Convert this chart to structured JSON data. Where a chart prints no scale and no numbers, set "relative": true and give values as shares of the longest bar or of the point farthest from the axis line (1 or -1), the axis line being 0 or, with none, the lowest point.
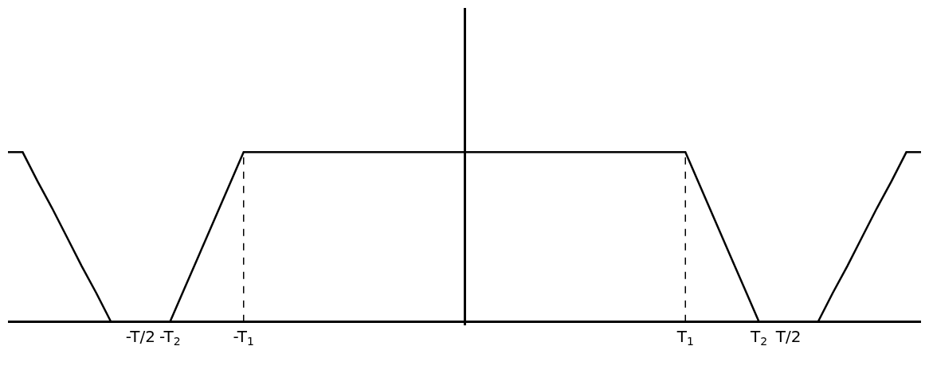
{
  "chart_data": {
    "type": "line",
    "relative": true,
    "categories": [
      null,
      null,
      null,
      null,
      null,
      null,
      null,
      null,
      null,
      "-T/2",
      null,
      "-T$_{2}$",
      null,
      null,
      null,
      null,
      "-T$_{1}$",
      null,
      null,
      null,
      null,
      null,
      null,
      null,
      null,
      null,
      null,
      null,
      null,
      null,
      null,
      null,
      null,
      null,
      null,
      null,
      null,
      null,
      null,
      null,
      null,
      null,
      null,
      null,
      null,
      null,
      "T$_{1}$",
      null,
      null,
      null,
      null,
      "T$_{2}$",
      null,
      "T/2",
      null,
      null,
      null,
      null,
      null,
      null,
      null,
      null,
      null
    ],
    "series": [
      {
        "color": "#000000",
        "line_style": "solid",
        "values": [
          1,
          1,
          0.83,
          0.67,
          0.5,
          0.33,
          0.17,
          0,
          0,
          0,
          0,
          0,
          0.2,
          0.4,
          0.6,
          0.8,
          1,
          1,
          1,
          1,
          1,
          1,
          1,
          1,
          1,
          1,
          1,
          1,
          1,
          1,
          1,
          1,
          1,
          1,
          1,
          1,
          1,
          1,
          1,
          1,
          1,
          1,
          1,
          1,
          1,
          1,
          1,
          0.8,
          0.6,
          0.4,
          0.2,
          0,
          0,
          0,
          0,
          0,
          0.17,
          0.33,
          0.5,
          0.67,
          0.83,
          1,
          1
        ]
      }
    ],
    "ref_lines": [
      {
        "axis": "x",
        "value": "-T$_{1}$",
        "line_style": "dashed",
        "color": "#000000"
      },
      {
        "axis": "x",
        "value": "T$_{1}$",
        "line_style": "dashed",
        "color": "#000000"
      }
    ],
    "grid": false,
    "marker": "none",
    "tick_labels": "x"
  }
}
